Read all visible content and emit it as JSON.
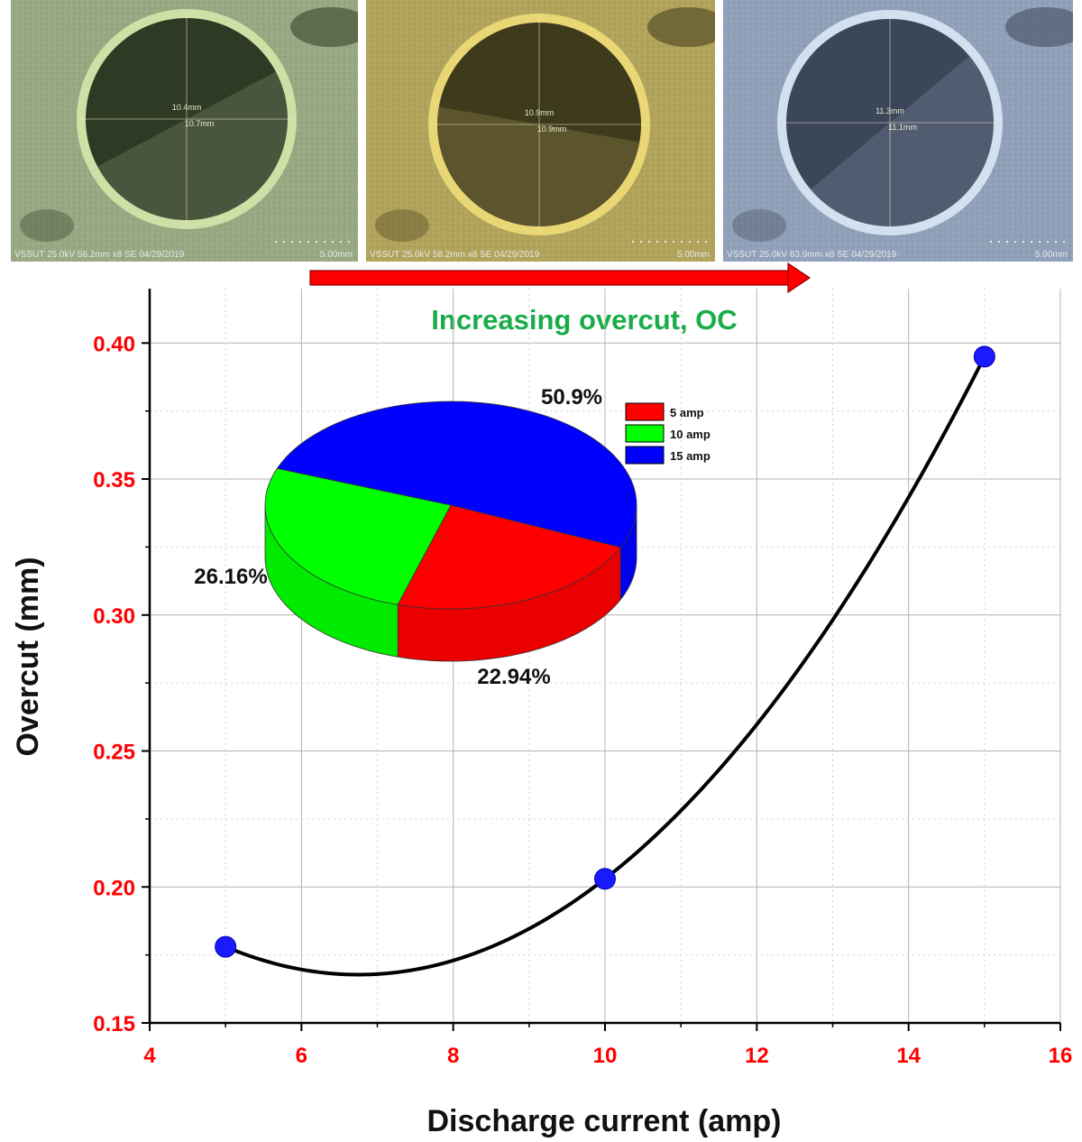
{
  "micrographs": [
    {
      "name": "micrograph-5amp",
      "tint": "#97a882",
      "dark": "#2f3a25",
      "ring": "#cfe0a6",
      "dim_v": "10.4mm",
      "dim_h": "10.7mm",
      "info": "VSSUT 25.0kV 58.2mm x8 SE 04/29/2019",
      "scale": "5.00mm"
    },
    {
      "name": "micrograph-10amp",
      "tint": "#b2a35a",
      "dark": "#3e3a1c",
      "ring": "#e8d774",
      "dim_v": "10.9mm",
      "dim_h": "10.9mm",
      "info": "VSSUT 25.0kV 58.2mm x8 SE 04/29/2019",
      "scale": "5.00mm"
    },
    {
      "name": "micrograph-15amp",
      "tint": "#8fa0b8",
      "dark": "#3c4659",
      "ring": "#d2e0f0",
      "dim_v": "11.3mm",
      "dim_h": "11.1mm",
      "info": "VSSUT 25.0kV 63.9mm x8 SE 04/29/2019",
      "scale": "5.00mm"
    }
  ],
  "annotation": {
    "text": "Increasing overcut, OC",
    "color": "#1aac4a",
    "arrow_color": "#ff0000"
  },
  "chart_data": {
    "type": "line",
    "xlabel": "Discharge current (amp)",
    "ylabel": "Overcut (mm)",
    "xlim": [
      4,
      16
    ],
    "ylim": [
      0.15,
      0.42
    ],
    "x_ticks": [
      4,
      6,
      8,
      10,
      12,
      14,
      16
    ],
    "x_tick_labels": [
      "4",
      "6",
      "8",
      "10",
      "12",
      "14",
      "16"
    ],
    "y_ticks": [
      0.15,
      0.2,
      0.25,
      0.3,
      0.35,
      0.4
    ],
    "y_tick_labels": [
      "0.15",
      "0.20",
      "0.25",
      "0.30",
      "0.35",
      "0.40"
    ],
    "grid": true,
    "series": [
      {
        "name": "Overcut",
        "x": [
          5,
          10,
          15
        ],
        "y": [
          0.178,
          0.203,
          0.395
        ],
        "marker_color": "#1a1aff",
        "line_color": "#000000"
      }
    ],
    "pie": {
      "type": "pie",
      "style": "3d",
      "slices": [
        {
          "label": "5 amp",
          "value": 22.94,
          "display": "22.94%",
          "color": "#ff0000"
        },
        {
          "label": "10 amp",
          "value": 26.16,
          "display": "26.16%",
          "color": "#00ff00"
        },
        {
          "label": "15 amp",
          "value": 50.9,
          "display": "50.9%",
          "color": "#0000ff"
        }
      ],
      "legend_position": "top-right"
    }
  }
}
